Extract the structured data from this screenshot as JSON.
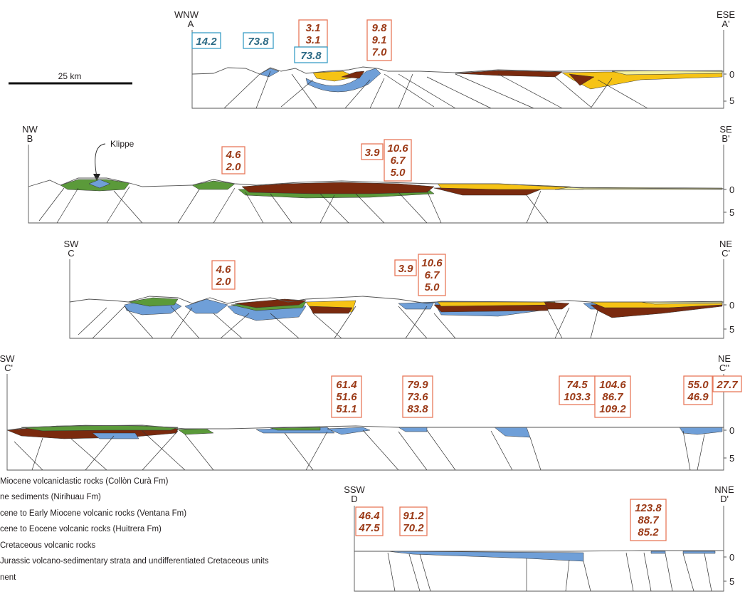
{
  "scale_bar": {
    "label": "25 km"
  },
  "klippe_label": "Klippe",
  "colors": {
    "collon_cura": "#f3ef9a",
    "nirihuau": "#f6c315",
    "ventana": "#7a2a0e",
    "huitrera": "#5b9a3a",
    "cretaceous_volcanic": "#6f9fd8",
    "basement": "#ffffff",
    "age_box_border_orange": "#e8785a",
    "age_box_border_blue": "#3a9ec5",
    "age_text_orange": "#9b3a17",
    "age_text_blue": "#2c6a85"
  },
  "sections": [
    {
      "id": "A",
      "left": {
        "direction": "WNW",
        "letter": "A"
      },
      "right": {
        "direction": "ESE",
        "letter": "A'"
      },
      "depth_ticks": [
        "0",
        "5"
      ],
      "ages": [
        {
          "lines": [
            "14.2"
          ],
          "color": "blue"
        },
        {
          "lines": [
            "73.8"
          ],
          "color": "blue"
        },
        {
          "lines": [
            "3.1",
            "3.1"
          ],
          "color": "orange"
        },
        {
          "lines": [
            "73.8"
          ],
          "color": "blue"
        },
        {
          "lines": [
            "9.8",
            "9.1",
            "7.0"
          ],
          "color": "orange"
        }
      ]
    },
    {
      "id": "B",
      "left": {
        "direction": "NW",
        "letter": "B"
      },
      "right": {
        "direction": "SE",
        "letter": "B'"
      },
      "depth_ticks": [
        "0",
        "5"
      ],
      "ages": [
        {
          "lines": [
            "4.6",
            "2.0"
          ],
          "color": "orange"
        },
        {
          "lines": [
            "3.9"
          ],
          "color": "orange"
        },
        {
          "lines": [
            "10.6",
            "6.7",
            "5.0"
          ],
          "color": "orange"
        }
      ]
    },
    {
      "id": "C",
      "left": {
        "direction": "SW",
        "letter": "C"
      },
      "right": {
        "direction": "NE",
        "letter": "C'"
      },
      "depth_ticks": [
        "0",
        "5"
      ],
      "ages": [
        {
          "lines": [
            "4.6",
            "2.0"
          ],
          "color": "orange"
        },
        {
          "lines": [
            "3.9"
          ],
          "color": "orange"
        },
        {
          "lines": [
            "10.6",
            "6.7",
            "5.0"
          ],
          "color": "orange"
        }
      ]
    },
    {
      "id": "C2",
      "left": {
        "direction": "SW",
        "letter": "C'"
      },
      "right": {
        "direction": "NE",
        "letter": "C''"
      },
      "depth_ticks": [
        "0",
        "5"
      ],
      "ages": [
        {
          "lines": [
            "61.4",
            "51.6",
            "51.1"
          ],
          "color": "orange"
        },
        {
          "lines": [
            "79.9",
            "73.6",
            "83.8"
          ],
          "color": "orange"
        },
        {
          "lines": [
            "74.5",
            "103.3"
          ],
          "color": "orange"
        },
        {
          "lines": [
            "104.6",
            "86.7",
            "109.2"
          ],
          "color": "orange"
        },
        {
          "lines": [
            "55.0",
            "46.9"
          ],
          "color": "orange"
        },
        {
          "lines": [
            "27.7"
          ],
          "color": "orange"
        }
      ]
    },
    {
      "id": "D",
      "left": {
        "direction": "SSW",
        "letter": "D"
      },
      "right": {
        "direction": "NNE",
        "letter": "D'"
      },
      "depth_ticks": [
        "0",
        "5"
      ],
      "ages": [
        {
          "lines": [
            "46.4",
            "47.5"
          ],
          "color": "orange"
        },
        {
          "lines": [
            "91.2",
            "70.2"
          ],
          "color": "orange"
        },
        {
          "lines": [
            "123.8",
            "88.7",
            "85.2"
          ],
          "color": "orange"
        }
      ]
    }
  ],
  "legend": [
    {
      "text": "Miocene volcaniclastic rocks (Collòn Curà Fm)",
      "color_key": "collon_cura"
    },
    {
      "text": "ne sediments (Nirihuau Fm)",
      "color_key": "nirihuau"
    },
    {
      "text": "cene to Early Miocene volcanic rocks (Ventana Fm)",
      "color_key": "ventana"
    },
    {
      "text": "cene to Eocene volcanic rocks (Huitrera Fm)",
      "color_key": "huitrera"
    },
    {
      "text": "Cretaceous volcanic rocks",
      "color_key": "cretaceous_volcanic"
    },
    {
      "text": "Jurassic volcano-sedimentary strata and undifferentiated Cretaceous units",
      "color_key": "basement"
    },
    {
      "text": "nent",
      "color_key": "basement"
    }
  ]
}
